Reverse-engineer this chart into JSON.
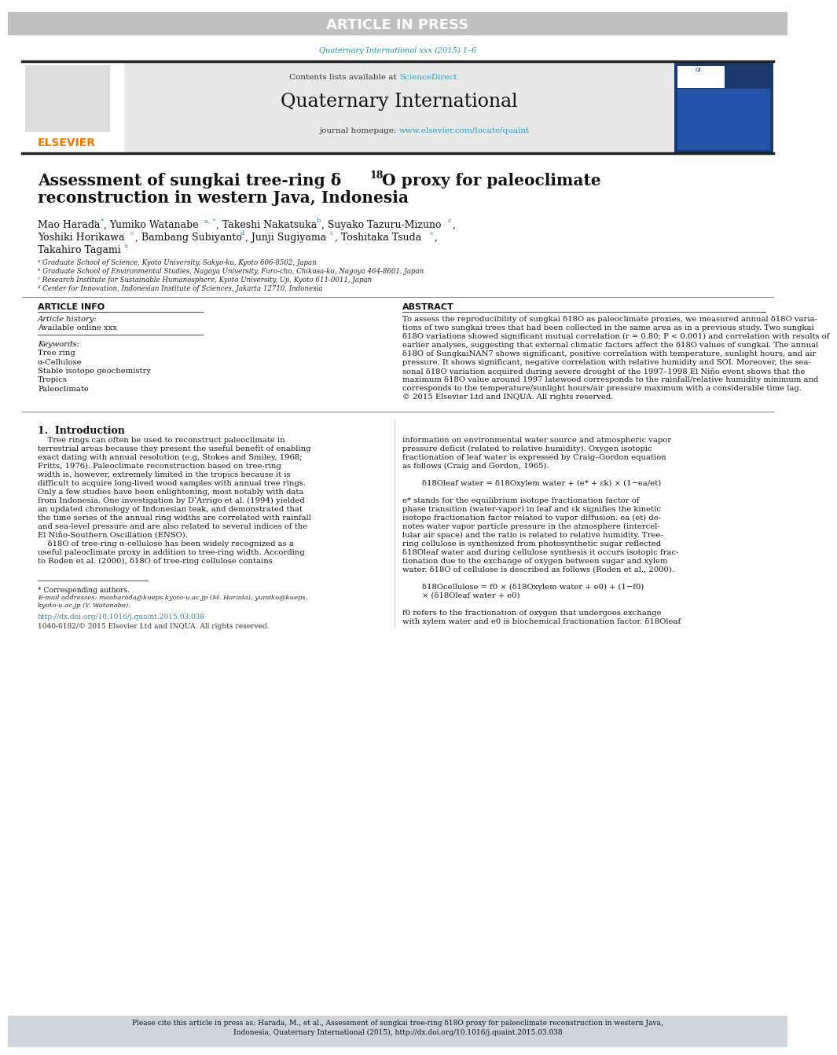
{
  "page_bg": "#ffffff",
  "article_in_press_bg": "#c0c0c0",
  "article_in_press_text": "ARTICLE IN PRESS",
  "journal_ref": "Quaternary International xxx (2015) 1–6",
  "journal_header_bg": "#e8e8e8",
  "sciencedirect_color": "#3399bb",
  "journal_name": "Quaternary International",
  "journal_url": "www.elsevier.com/locate/quaint",
  "elsevier_color": "#ee7700",
  "elsevier_text": "ELSEVIER",
  "paper_title": "Assessment of sungkai tree-ring δ¹18O proxy for paleoclimate\nreconstruction in western Java, Indonesia",
  "affil_a": "ᵃ Graduate School of Science, Kyoto University, Sakyo-ku, Kyoto 606-8502, Japan",
  "affil_b": "ᵇ Graduate School of Environmental Studies, Nagoya University, Furo-cho, Chikusa-ku, Nagoya 464-8601, Japan",
  "affil_c": "ᶜ Research Institute for Sustainable Humanosphere, Kyoto University, Uji, Kyoto 611-0011, Japan",
  "affil_d": "ᵈ Center for Innovation, Indonesian Institute of Sciences, Jakarta 12710, Indonesia",
  "article_info_header": "ARTICLE INFO",
  "abstract_header": "ABSTRACT",
  "keywords": "Tree ring\nα-Cellulose\nStable isotope geochemistry\nTropics\nPaleoclimate",
  "abstract_lines": [
    "To assess the reproducibility of sungkai δ18O as paleoclimate proxies, we measured annual δ18O varia-",
    "tions of two sungkai trees that had been collected in the same area as in a previous study. Two sungkai",
    "δ18O variations showed significant mutual correlation (r = 0.80; P < 0.001) and correlation with results of",
    "earlier analyses, suggesting that external climatic factors affect the δ18O values of sungkai. The annual",
    "δ18O of SungkaiNAN7 shows significant, positive correlation with temperature, sunlight hours, and air",
    "pressure. It shows significant, negative correlation with relative humidity and SOI. Moreover, the sea-",
    "sonal δ18O variation acquired during severe drought of the 1997–1998 El Niño event shows that the",
    "maximum δ18O value around 1997 latewood corresponds to the rainfall/relative humidity minimum and",
    "corresponds to the temperature/sunlight hours/air pressure maximum with a considerable time lag.",
    "© 2015 Elsevier Ltd and INQUA. All rights reserved."
  ],
  "intro_header": "1.  Introduction",
  "intro_lines": [
    "    Tree rings can often be used to reconstruct paleoclimate in",
    "terrestrial areas because they present the useful benefit of enabling",
    "exact dating with annual resolution (e.g, Stokes and Smiley, 1968;",
    "Fritts, 1976). Paleoclimate reconstruction based on tree-ring",
    "width is, however, extremely limited in the tropics because it is",
    "difficult to acquire long-lived wood samples with annual tree rings.",
    "Only a few studies have been enlightening, most notably with data",
    "from Indonesia. One investigation by D’Arrigo et al. (1994) yielded",
    "an updated chronology of Indonesian teak, and demonstrated that",
    "the time series of the annual ring widths are correlated with rainfall",
    "and sea-level pressure and are also related to several indices of the",
    "El Niño-Southern Oscillation (ENSO).",
    "    δ18O of tree-ring α-cellulose has been widely recognized as a",
    "useful paleoclimate proxy in addition to tree-ring width. According",
    "to Roden et al. (2000), δ18O of tree-ring cellulose contains"
  ],
  "right_intro_lines": [
    "information on environmental water source and atmospheric vapor",
    "pressure deficit (related to relative humidity). Oxygen isotopic",
    "fractionation of leaf water is expressed by Craig–Gordon equation",
    "as follows (Craig and Gordon, 1965).",
    "",
    "δ18Oleaf water = δ18Oxylem water + (e* + εk) × (1−ea/et)",
    "",
    "e* stands for the equilibrium isotope fractionation factor of",
    "phase transition (water-vapor) in leaf and εk signifies the kinetic",
    "isotope fractionation factor related to vapor diffusion. ea (et) de-",
    "notes water vapor particle pressure in the atmosphere (intercel-",
    "lular air space) and the ratio is related to relative humidity. Tree-",
    "ring cellulose is synthesized from photosynthetic sugar reflected",
    "δ18Oleaf water and during cellulose synthesis it occurs isotopic frac-",
    "tionation due to the exchange of oxygen between sugar and xylem",
    "water. δ18O of cellulose is described as follows (Roden et al., 2000).",
    "",
    "δ18Ocellulose = f0 × (δ18Oxylem water + e0) + (1−f0)",
    "                        × (δ18Oleaf water + e0)",
    "",
    "f0 refers to the fractionation of oxygen that undergoes exchange",
    "with xylem water and e0 is biochemical fractionation factor. δ18Oleaf"
  ],
  "footnote_star": "* Corresponding authors.",
  "footnote_email_line1": "E-mail addresses: maoharada@kueps.kyoto-u.ac.jp (M. Harada), yumiko@kueps.",
  "footnote_email_line2": "kyoto-u.ac.jp (Y. Watanabe).",
  "doi_text": "http://dx.doi.org/10.1016/j.quaint.2015.03.038",
  "issn_text": "1040-6182/© 2015 Elsevier Ltd and INQUA. All rights reserved.",
  "bottom_bar_line1": "Please cite this article in press as: Harada, M., et al., Assessment of sungkai tree-ring δ18O proxy for paleoclimate reconstruction in western Java,",
  "bottom_bar_line2": "Indonesia, Quaternary International (2015), http://dx.doi.org/10.1016/j.quaint.2015.03.038",
  "bottom_bar_bg": "#ccd4dc",
  "teal_color": "#2288aa",
  "link_color": "#3399bb",
  "dark_red": "#cc3333"
}
